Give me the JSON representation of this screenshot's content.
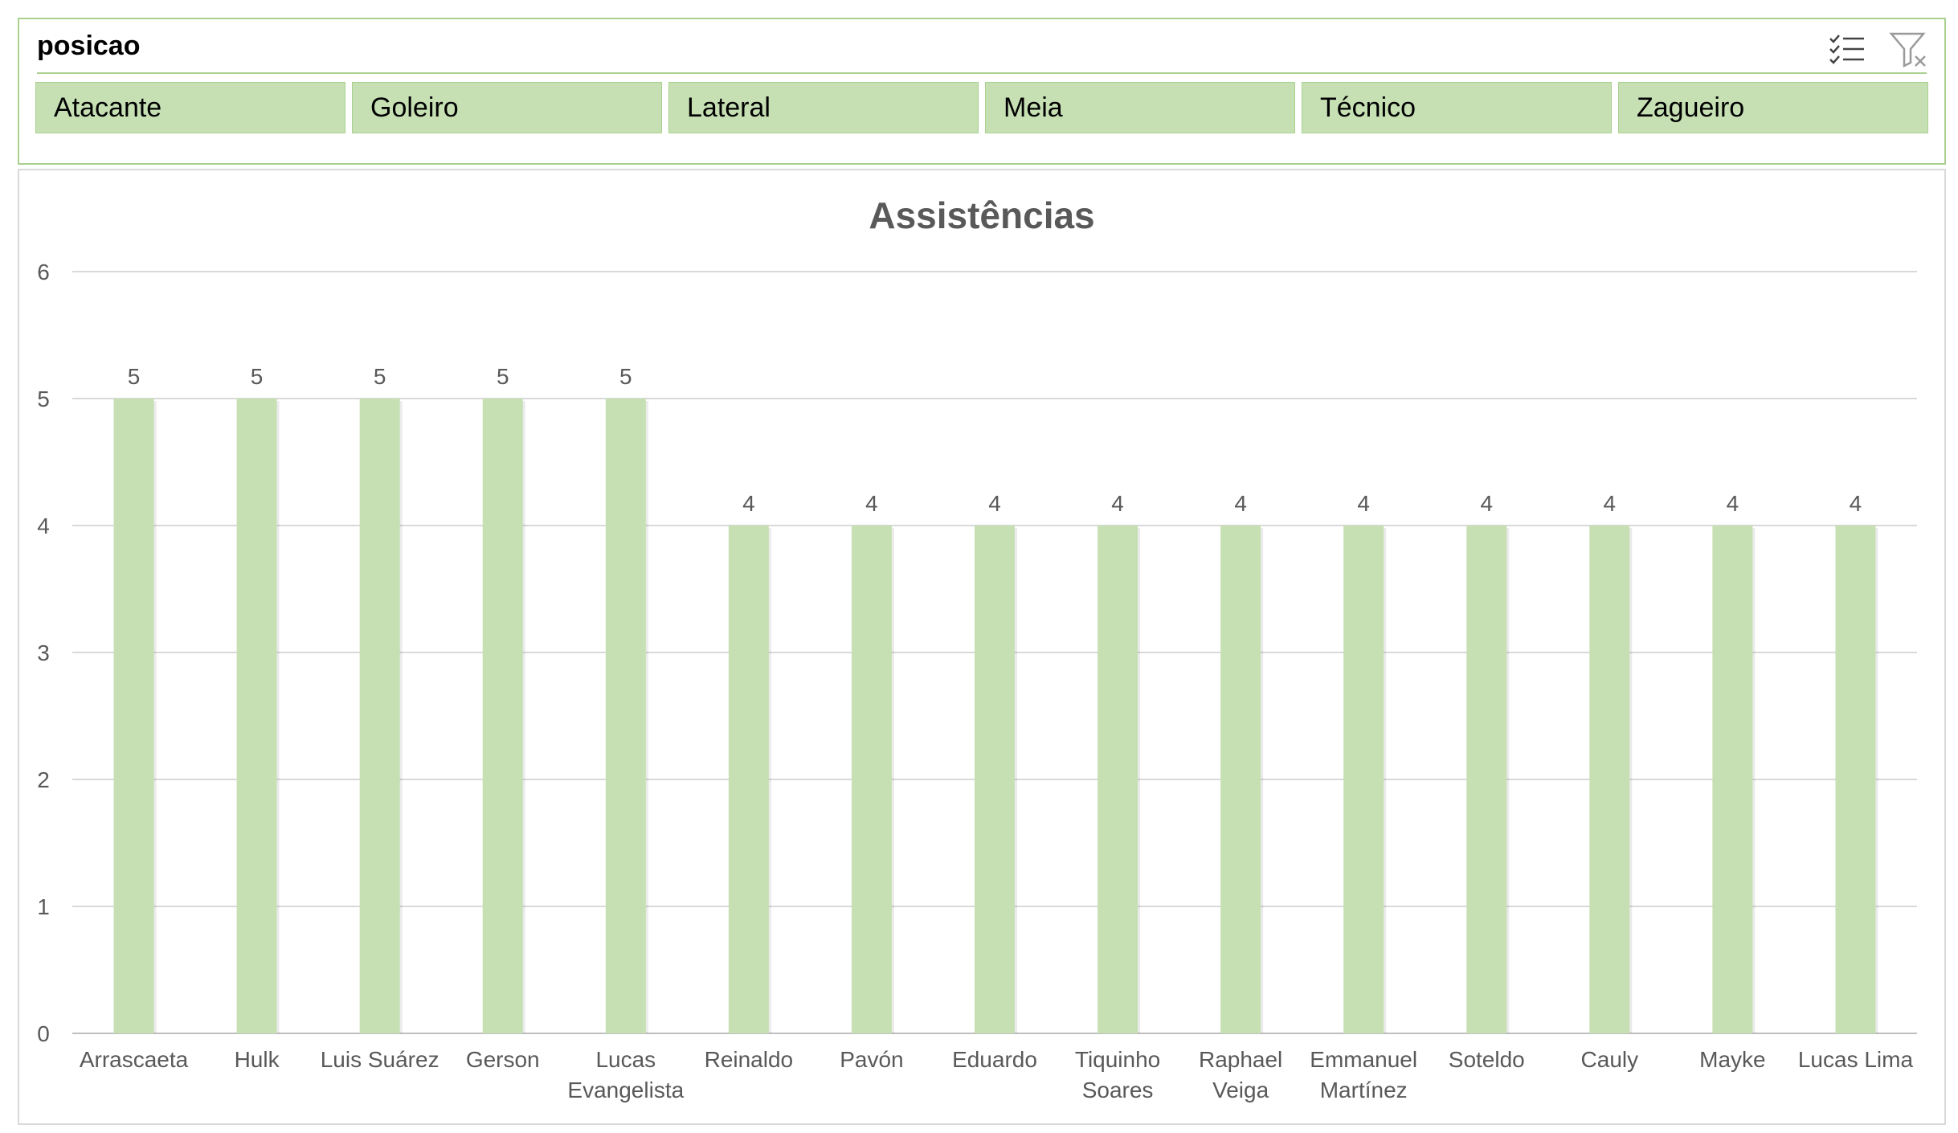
{
  "slicer": {
    "title": "posicao",
    "tools": [
      {
        "name": "multi-select",
        "icon": "multi-select-icon"
      },
      {
        "name": "clear-filter",
        "icon": "clear-filter-icon"
      }
    ],
    "items": [
      "Atacante",
      "Goleiro",
      "Lateral",
      "Meia",
      "Técnico",
      "Zagueiro"
    ]
  },
  "colors": {
    "accent": "#a9d08e",
    "bar_fill": "#c6e0b4",
    "grid": "#d9d9d9",
    "text": "#595959"
  },
  "chart_data": {
    "type": "bar",
    "title": "Assistências",
    "xlabel": "",
    "ylabel": "",
    "ylim": [
      0,
      6
    ],
    "yticks": [
      "0",
      "1",
      "2",
      "3",
      "4",
      "5",
      "6"
    ],
    "grid": true,
    "categories": [
      [
        "Arrascaeta"
      ],
      [
        "Hulk"
      ],
      [
        "Luis Suárez"
      ],
      [
        "Gerson"
      ],
      [
        "Lucas",
        "Evangelista"
      ],
      [
        "Reinaldo"
      ],
      [
        "Pavón"
      ],
      [
        "Eduardo"
      ],
      [
        "Tiquinho",
        "Soares"
      ],
      [
        "Raphael",
        "Veiga"
      ],
      [
        "Emmanuel",
        "Martínez"
      ],
      [
        "Soteldo"
      ],
      [
        "Cauly"
      ],
      [
        "Mayke"
      ],
      [
        "Lucas Lima"
      ]
    ],
    "values": [
      5,
      5,
      5,
      5,
      5,
      4,
      4,
      4,
      4,
      4,
      4,
      4,
      4,
      4,
      4
    ],
    "data_labels": true
  }
}
